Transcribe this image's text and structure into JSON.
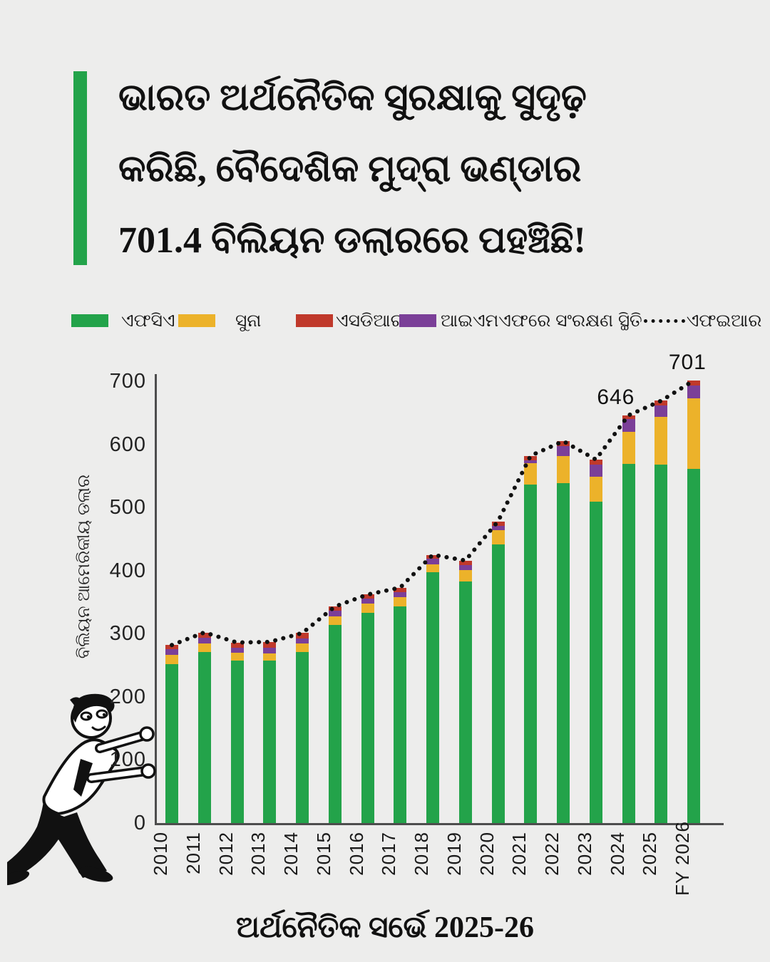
{
  "title": {
    "lines": [
      "ଭାରତ ଅର୍ଥନୈତିକ ସୁରକ୍ଷାକୁ ସୁଦୃଢ଼",
      "କରିଛି, ବୈଦେଶିକ ମୁଦ୍ରା ଭଣ୍ଡାର",
      "701.4 ବିଲିୟନ ଡଲାରରେ ପହଞ୍ଚିଛି!"
    ]
  },
  "accent_color": "#23a34a",
  "legend": [
    {
      "label": "ଏଫସିଏ",
      "color": "#23a34a",
      "type": "swatch"
    },
    {
      "label": "ସୁନା",
      "color": "#ecb22a",
      "type": "swatch"
    },
    {
      "label": "ଏସଡିଆର",
      "color": "#c0392b",
      "type": "swatch"
    },
    {
      "label": "ଆଇଏମଏଫରେ ସଂରକ୍ଷଣ ସ୍ଥିତି",
      "color": "#7b3f98",
      "type": "swatch"
    },
    {
      "label": "ଏଫଇଆର",
      "color": "#111111",
      "type": "dotted-line"
    }
  ],
  "chart_data": {
    "type": "bar",
    "stacked": true,
    "categories": [
      "2010",
      "2011",
      "2012",
      "2013",
      "2014",
      "2015",
      "2016",
      "2017",
      "2018",
      "2019",
      "2020",
      "2021",
      "2022",
      "2023",
      "2024",
      "2025",
      "FY 2026"
    ],
    "series": [
      {
        "name": "ଏଫସିଏ",
        "color": "#23a34a",
        "values": [
          252,
          271,
          258,
          258,
          271,
          314,
          333,
          343,
          397,
          383,
          442,
          536,
          539,
          509,
          569,
          568,
          561
        ]
      },
      {
        "name": "ସୁନା",
        "color": "#ecb22a",
        "values": [
          15,
          14,
          12,
          11,
          13,
          14,
          15,
          15,
          13,
          18,
          22,
          34,
          42,
          40,
          51,
          76,
          112
        ]
      },
      {
        "name": "ଆଇଏମଏଫରେ ସଂରକ୍ଷଣ ସ୍ଥିତି",
        "color": "#7b3f98",
        "values": [
          8,
          9,
          8,
          9,
          8,
          8,
          8,
          8,
          9,
          8,
          7,
          5,
          16,
          19,
          20,
          18,
          20
        ]
      },
      {
        "name": "ଏସଡିଆର",
        "color": "#c0392b",
        "values": [
          7,
          8,
          8,
          9,
          9,
          7,
          6,
          7,
          6,
          7,
          7,
          7,
          8,
          8,
          6,
          7,
          8
        ]
      }
    ],
    "line_series": {
      "name": "ଏଫଇଆର",
      "style": "dotted",
      "color": "#111111",
      "values": [
        282,
        302,
        286,
        287,
        301,
        343,
        362,
        373,
        425,
        416,
        478,
        582,
        605,
        576,
        646,
        669,
        701
      ]
    },
    "annotations": [
      {
        "category": "2024",
        "text": "646"
      },
      {
        "category": "FY 2026",
        "text": "701"
      }
    ],
    "ylabel": "ବିଲିୟନ ଆମେରିକୀୟ ଡଲାର",
    "yticks": [
      0,
      100,
      200,
      300,
      400,
      500,
      600,
      700
    ],
    "ylim": [
      0,
      700
    ],
    "grid": false,
    "legend_position": "top"
  },
  "caption": "ଅର୍ଥନୈତିକ ସର୍ଭେ 2025-26"
}
